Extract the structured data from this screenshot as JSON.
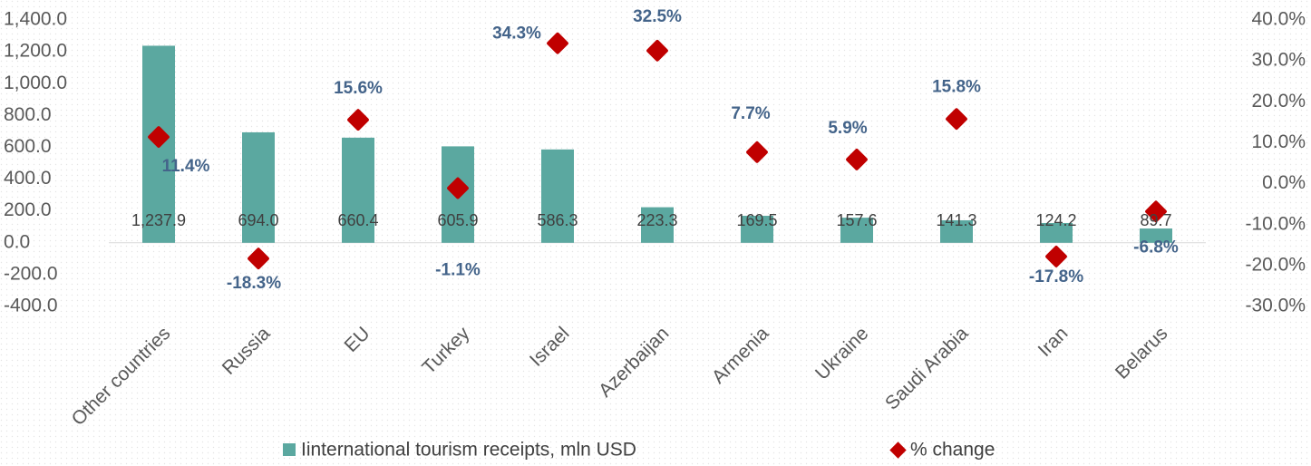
{
  "chart_data": {
    "type": "bar_scatter",
    "categories": [
      "Other countries",
      "Russia",
      "EU",
      "Turkey",
      "Israel",
      "Azerbaijan",
      "Armenia",
      "Ukraine",
      "Saudi Arabia",
      "Iran",
      "Belarus"
    ],
    "series": [
      {
        "name": "Iinternational tourism receipts, mln USD",
        "color": "#5ba8a0",
        "type": "bar",
        "values": [
          1237.9,
          694.0,
          660.4,
          605.9,
          586.3,
          223.3,
          169.5,
          157.6,
          141.3,
          124.2,
          89.7
        ],
        "value_labels": [
          "1,237.9",
          "694.0",
          "660.4",
          "605.9",
          "586.3",
          "223.3",
          "169.5",
          "157.6",
          "141.3",
          "124.2",
          "89.7"
        ]
      },
      {
        "name": "% change",
        "color": "#c00000",
        "type": "scatter",
        "axis": "y2",
        "values": [
          11.4,
          -18.3,
          15.6,
          -1.1,
          34.3,
          32.5,
          7.7,
          5.9,
          15.8,
          -17.8,
          -6.8
        ],
        "value_labels": [
          "11.4%",
          "-18.3%",
          "15.6%",
          "-1.1%",
          "34.3%",
          "32.5%",
          "7.7%",
          "5.9%",
          "15.8%",
          "-17.8%",
          "-6.8%"
        ]
      }
    ],
    "ylim": [
      -400,
      1400
    ],
    "yticks": [
      {
        "value": -400,
        "label": "-400.0"
      },
      {
        "value": -200,
        "label": "-200.0"
      },
      {
        "value": 0,
        "label": "0.0"
      },
      {
        "value": 200,
        "label": "200.0"
      },
      {
        "value": 400,
        "label": "400.0"
      },
      {
        "value": 600,
        "label": "600.0"
      },
      {
        "value": 800,
        "label": "800.0"
      },
      {
        "value": 1000,
        "label": "1,000.0"
      },
      {
        "value": 1200,
        "label": "1,200.0"
      },
      {
        "value": 1400,
        "label": "1,400.0"
      }
    ],
    "y2lim": [
      -30,
      40
    ],
    "y2ticks": [
      {
        "value": -30,
        "label": "-30.0%"
      },
      {
        "value": -20,
        "label": "-20.0%"
      },
      {
        "value": -10,
        "label": "-10.0%"
      },
      {
        "value": 0,
        "label": "0.0%"
      },
      {
        "value": 10,
        "label": "10.0%"
      },
      {
        "value": 20,
        "label": "20.0%"
      },
      {
        "value": 30,
        "label": "30.0%"
      },
      {
        "value": 40,
        "label": "40.0%"
      }
    ],
    "legend": "bottom"
  }
}
